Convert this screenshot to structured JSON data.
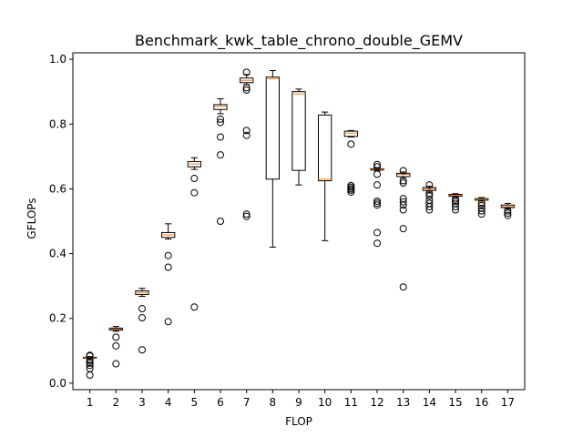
{
  "chart_data": {
    "type": "box",
    "title": "Benchmark_kwk_table_chrono_double_GEMV",
    "xlabel": "FLOP",
    "ylabel": "GFLOPs",
    "ylim": [
      -0.02,
      1.02
    ],
    "yticks": [
      0.0,
      0.2,
      0.4,
      0.6,
      0.8,
      1.0
    ],
    "ytick_labels": [
      "0.0",
      "0.2",
      "0.4",
      "0.6",
      "0.8",
      "1.0"
    ],
    "categories": [
      "1",
      "2",
      "3",
      "4",
      "5",
      "6",
      "7",
      "8",
      "9",
      "10",
      "11",
      "12",
      "13",
      "14",
      "15",
      "16",
      "17"
    ],
    "boxes": [
      {
        "label": "1",
        "whislo": 0.075,
        "q1": 0.077,
        "med": 0.078,
        "q3": 0.08,
        "whishi": 0.082,
        "fliers": [
          0.025,
          0.045,
          0.055,
          0.062,
          0.068,
          0.072,
          0.084,
          0.086
        ]
      },
      {
        "label": "2",
        "whislo": 0.16,
        "q1": 0.164,
        "med": 0.167,
        "q3": 0.17,
        "whishi": 0.175,
        "fliers": [
          0.06,
          0.115,
          0.142
        ]
      },
      {
        "label": "3",
        "whislo": 0.268,
        "q1": 0.274,
        "med": 0.28,
        "q3": 0.285,
        "whishi": 0.293,
        "fliers": [
          0.103,
          0.202,
          0.23
        ]
      },
      {
        "label": "4",
        "whislo": 0.445,
        "q1": 0.45,
        "med": 0.458,
        "q3": 0.465,
        "whishi": 0.492,
        "fliers": [
          0.19,
          0.358,
          0.394
        ]
      },
      {
        "label": "5",
        "whislo": 0.66,
        "q1": 0.668,
        "med": 0.677,
        "q3": 0.684,
        "whishi": 0.696,
        "fliers": [
          0.235,
          0.588,
          0.632
        ]
      },
      {
        "label": "6",
        "whislo": 0.832,
        "q1": 0.845,
        "med": 0.855,
        "q3": 0.86,
        "whishi": 0.878,
        "fliers": [
          0.5,
          0.705,
          0.76,
          0.805,
          0.815
        ]
      },
      {
        "label": "7",
        "whislo": 0.922,
        "q1": 0.928,
        "med": 0.935,
        "q3": 0.942,
        "whishi": 0.953,
        "fliers": [
          0.515,
          0.522,
          0.765,
          0.78,
          0.905,
          0.912,
          0.96
        ]
      },
      {
        "label": "8",
        "whislo": 0.42,
        "q1": 0.63,
        "med": 0.94,
        "q3": 0.945,
        "whishi": 0.965,
        "fliers": []
      },
      {
        "label": "9",
        "whislo": 0.612,
        "q1": 0.657,
        "med": 0.893,
        "q3": 0.9,
        "whishi": 0.908,
        "fliers": []
      },
      {
        "label": "10",
        "whislo": 0.44,
        "q1": 0.625,
        "med": 0.63,
        "q3": 0.828,
        "whishi": 0.837,
        "fliers": []
      },
      {
        "label": "11",
        "whislo": 0.76,
        "q1": 0.762,
        "med": 0.772,
        "q3": 0.778,
        "whishi": 0.78,
        "fliers": [
          0.59,
          0.596,
          0.6,
          0.605,
          0.61,
          0.738
        ]
      },
      {
        "label": "12",
        "whislo": 0.655,
        "q1": 0.658,
        "med": 0.66,
        "q3": 0.662,
        "whishi": 0.663,
        "fliers": [
          0.432,
          0.465,
          0.55,
          0.556,
          0.562,
          0.612,
          0.645,
          0.668,
          0.675
        ]
      },
      {
        "label": "13",
        "whislo": 0.633,
        "q1": 0.638,
        "med": 0.645,
        "q3": 0.648,
        "whishi": 0.652,
        "fliers": [
          0.297,
          0.477,
          0.535,
          0.55,
          0.56,
          0.57,
          0.618,
          0.625,
          0.656
        ]
      },
      {
        "label": "14",
        "whislo": 0.59,
        "q1": 0.595,
        "med": 0.6,
        "q3": 0.604,
        "whishi": 0.608,
        "fliers": [
          0.535,
          0.545,
          0.555,
          0.565,
          0.578,
          0.586,
          0.612
        ]
      },
      {
        "label": "15",
        "whislo": 0.573,
        "q1": 0.577,
        "med": 0.58,
        "q3": 0.583,
        "whishi": 0.585,
        "fliers": [
          0.535,
          0.545,
          0.555,
          0.562,
          0.568
        ]
      },
      {
        "label": "16",
        "whislo": 0.562,
        "q1": 0.565,
        "med": 0.568,
        "q3": 0.57,
        "whishi": 0.573,
        "fliers": [
          0.522,
          0.532,
          0.54,
          0.548,
          0.555
        ]
      },
      {
        "label": "17",
        "whislo": 0.538,
        "q1": 0.542,
        "med": 0.545,
        "q3": 0.55,
        "whishi": 0.555,
        "fliers": [
          0.518,
          0.525,
          0.532
        ]
      }
    ],
    "colors": {
      "box": "#000000",
      "median": "#ff7f0e",
      "flier": "#000000",
      "background": "#ffffff"
    }
  }
}
